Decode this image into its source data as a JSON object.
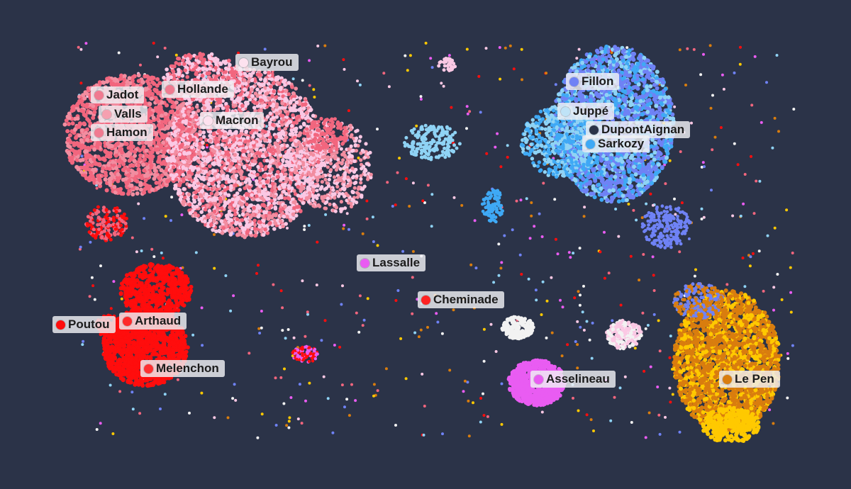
{
  "colors": {
    "background": "#2b3348",
    "far_left": "#f2667e",
    "socialist": "#f28da0",
    "centre": "#fbc8e4",
    "far_left_red": "#ff0d0d",
    "right": "#6f82f5",
    "right_light": "#8fd3f5",
    "sarkozy": "#3fa9f5",
    "far_right": "#d97d0e",
    "far_right_yellow": "#ffc900",
    "asselineau": "#e95cf2",
    "neutral": "#f2f2f2"
  },
  "candidates": [
    {
      "name": "Bayrou",
      "color": "#fde2ef"
    },
    {
      "name": "Hollande",
      "color": "#f07a90"
    },
    {
      "name": "Jadot",
      "color": "#f07a90"
    },
    {
      "name": "Valls",
      "color": "#f5a0b0"
    },
    {
      "name": "Hamon",
      "color": "#f07a90"
    },
    {
      "name": "Macron",
      "color": "#fde2ef"
    },
    {
      "name": "Fillon",
      "color": "#6f82f5"
    },
    {
      "name": "Juppé",
      "color": "#bfe3f7"
    },
    {
      "name": "DupontAignan",
      "color": "#2b3348"
    },
    {
      "name": "Sarkozy",
      "color": "#3fa9f5"
    },
    {
      "name": "Lassalle",
      "color": "#e95cf2"
    },
    {
      "name": "Cheminade",
      "color": "#ff2222"
    },
    {
      "name": "Poutou",
      "color": "#ff0d0d"
    },
    {
      "name": "Arthaud",
      "color": "#ff2a2a"
    },
    {
      "name": "Melenchon",
      "color": "#ff3030"
    },
    {
      "name": "Asselineau",
      "color": "#e95cf2"
    },
    {
      "name": "Le Pen",
      "color": "#d97d0e"
    }
  ]
}
